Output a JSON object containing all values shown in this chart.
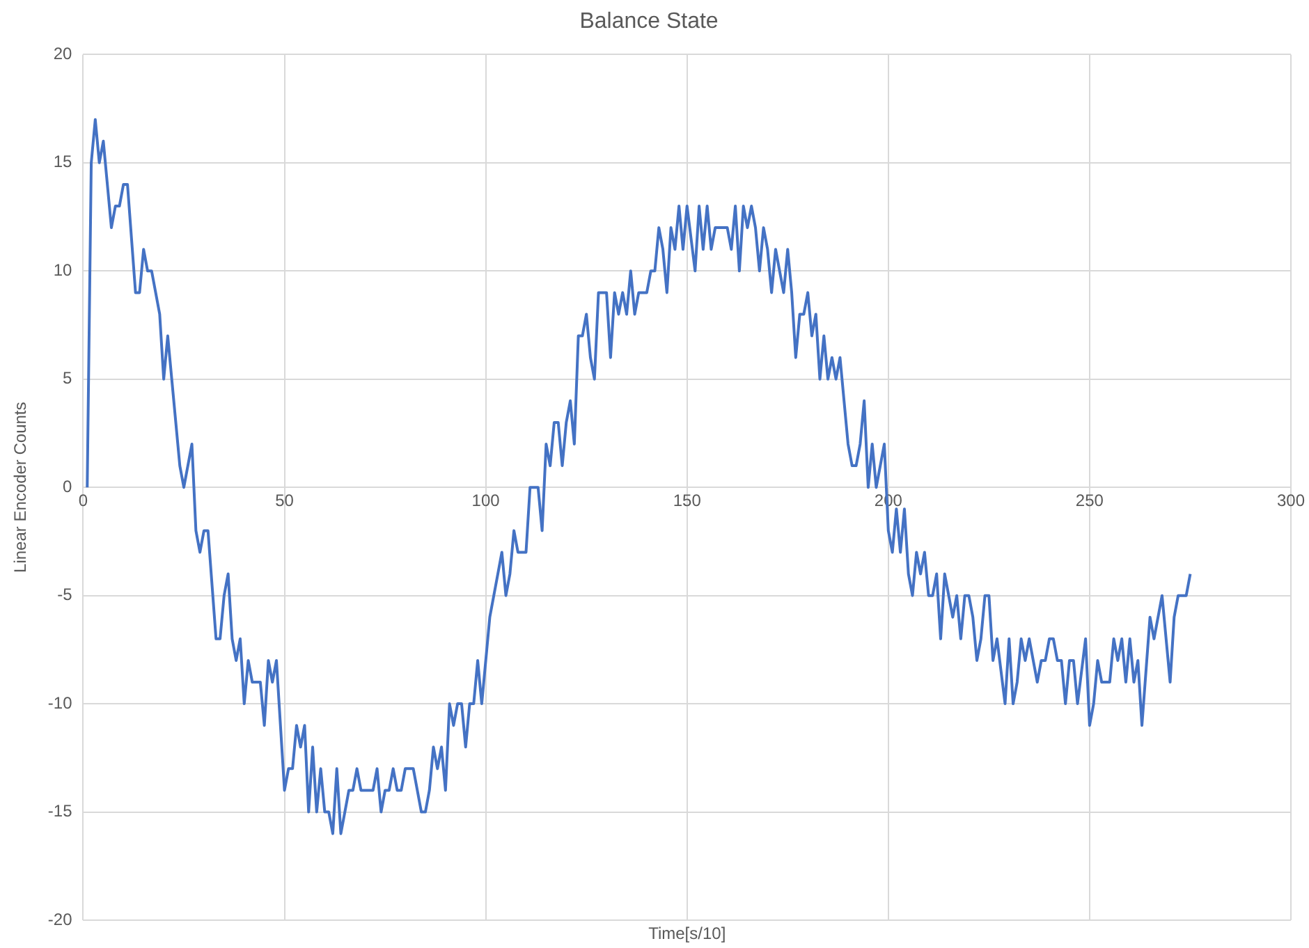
{
  "chart_data": {
    "type": "line",
    "title": "Balance State",
    "xlabel": "Time[s/10]",
    "ylabel": "Linear Encoder Counts",
    "x": [
      1,
      2,
      3,
      4,
      5,
      7,
      8,
      9,
      10,
      11,
      13,
      14,
      15,
      16,
      17,
      19,
      20,
      21,
      22,
      24,
      25,
      27,
      28,
      29,
      30,
      31,
      33,
      34,
      35,
      36,
      37,
      38,
      39,
      40,
      41,
      42,
      44,
      45,
      46,
      47,
      48,
      50,
      51,
      52,
      53,
      54,
      55,
      56,
      57,
      58,
      59,
      60,
      61,
      62,
      63,
      64,
      65,
      66,
      67,
      68,
      69,
      72,
      73,
      74,
      75,
      76,
      77,
      78,
      79,
      80,
      82,
      84,
      85,
      86,
      87,
      88,
      89,
      90,
      91,
      92,
      93,
      94,
      95,
      96,
      97,
      98,
      99,
      101,
      102,
      103,
      104,
      105,
      106,
      107,
      108,
      110,
      111,
      113,
      114,
      115,
      116,
      117,
      118,
      119,
      120,
      121,
      122,
      123,
      124,
      125,
      126,
      127,
      128,
      130,
      131,
      132,
      133,
      134,
      135,
      136,
      137,
      138,
      140,
      141,
      142,
      143,
      144,
      145,
      146,
      147,
      148,
      149,
      150,
      152,
      153,
      154,
      155,
      156,
      157,
      160,
      161,
      162,
      163,
      164,
      165,
      166,
      167,
      168,
      169,
      170,
      171,
      172,
      173,
      174,
      175,
      176,
      177,
      178,
      179,
      180,
      181,
      182,
      183,
      184,
      185,
      186,
      187,
      188,
      190,
      191,
      192,
      193,
      194,
      195,
      196,
      197,
      199,
      200,
      201,
      202,
      203,
      204,
      205,
      206,
      207,
      208,
      209,
      210,
      211,
      212,
      213,
      214,
      216,
      217,
      218,
      219,
      220,
      221,
      222,
      223,
      224,
      225,
      226,
      227,
      229,
      230,
      231,
      232,
      233,
      234,
      235,
      237,
      238,
      239,
      240,
      241,
      242,
      243,
      244,
      245,
      246,
      247,
      249,
      250,
      251,
      252,
      253,
      255,
      256,
      257,
      258,
      259,
      260,
      261,
      262,
      263,
      265,
      266,
      268,
      270,
      271,
      272,
      274,
      275
    ],
    "values": [
      0,
      15,
      17,
      15,
      16,
      12,
      13,
      13,
      14,
      14,
      9,
      9,
      11,
      10,
      10,
      8,
      5,
      7,
      5,
      1,
      0,
      2,
      -2,
      -3,
      -2,
      -2,
      -7,
      -7,
      -5,
      -4,
      -7,
      -8,
      -7,
      -10,
      -8,
      -9,
      -9,
      -11,
      -8,
      -9,
      -8,
      -14,
      -13,
      -13,
      -11,
      -12,
      -11,
      -15,
      -12,
      -15,
      -13,
      -15,
      -15,
      -16,
      -13,
      -16,
      -15,
      -14,
      -14,
      -13,
      -14,
      -14,
      -13,
      -15,
      -14,
      -14,
      -13,
      -14,
      -14,
      -13,
      -13,
      -15,
      -15,
      -14,
      -12,
      -13,
      -12,
      -14,
      -10,
      -11,
      -10,
      -10,
      -12,
      -10,
      -10,
      -8,
      -10,
      -6,
      -5,
      -4,
      -3,
      -5,
      -4,
      -2,
      -3,
      -3,
      0,
      0,
      -2,
      2,
      1,
      3,
      3,
      1,
      3,
      4,
      2,
      7,
      7,
      8,
      6,
      5,
      9,
      9,
      6,
      9,
      8,
      9,
      8,
      10,
      8,
      9,
      9,
      10,
      10,
      12,
      11,
      9,
      12,
      11,
      13,
      11,
      13,
      10,
      13,
      11,
      13,
      11,
      12,
      12,
      11,
      13,
      10,
      13,
      12,
      13,
      12,
      10,
      12,
      11,
      9,
      11,
      10,
      9,
      11,
      9,
      6,
      8,
      8,
      9,
      7,
      8,
      5,
      7,
      5,
      6,
      5,
      6,
      2,
      1,
      1,
      2,
      4,
      0,
      2,
      0,
      2,
      -2,
      -3,
      -1,
      -3,
      -1,
      -4,
      -5,
      -3,
      -4,
      -3,
      -5,
      -5,
      -4,
      -7,
      -4,
      -6,
      -5,
      -7,
      -5,
      -5,
      -6,
      -8,
      -7,
      -5,
      -5,
      -8,
      -7,
      -10,
      -7,
      -10,
      -9,
      -7,
      -8,
      -7,
      -9,
      -8,
      -8,
      -7,
      -7,
      -8,
      -8,
      -10,
      -8,
      -8,
      -10,
      -7,
      -11,
      -10,
      -8,
      -9,
      -9,
      -7,
      -8,
      -7,
      -9,
      -7,
      -9,
      -8,
      -11,
      -6,
      -7,
      -5,
      -9,
      -6,
      -5,
      -5,
      -4
    ],
    "color": "#4472c4",
    "xlim": [
      0,
      300
    ],
    "xticks": [
      0,
      50,
      100,
      150,
      200,
      250,
      300
    ],
    "ylim": [
      -20,
      20
    ],
    "yticks": [
      -20,
      -15,
      -10,
      -5,
      0,
      5,
      10,
      15,
      20
    ],
    "grid": true,
    "legend": false,
    "marker": "none",
    "line_style": "solid"
  }
}
